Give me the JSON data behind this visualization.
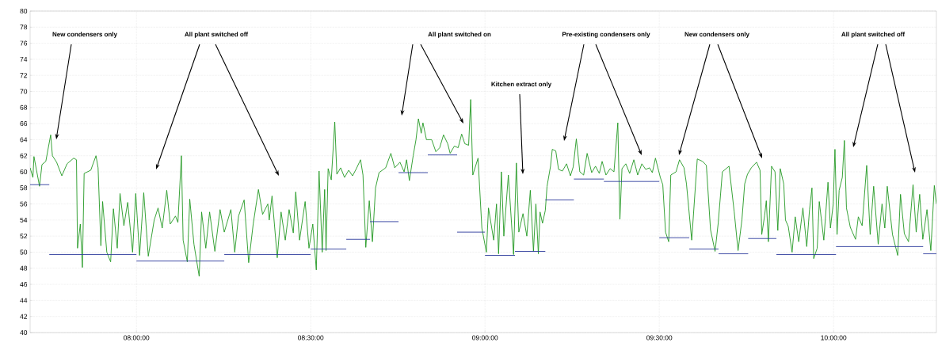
{
  "chart_data": {
    "type": "line",
    "series": [
      {
        "color": "#229922",
        "x": [
          7.695,
          7.703,
          7.706,
          7.722,
          7.729,
          7.74,
          7.754,
          7.759,
          7.771,
          7.786,
          7.801,
          7.82,
          7.828,
          7.831,
          7.839,
          7.845,
          7.85,
          7.869,
          7.884,
          7.89,
          7.898,
          7.903,
          7.915,
          7.926,
          7.934,
          7.945,
          7.953,
          7.964,
          7.975,
          7.989,
          7.998,
          8.009,
          8.021,
          8.034,
          8.051,
          8.062,
          8.074,
          8.087,
          8.097,
          8.112,
          8.119,
          8.129,
          8.134,
          8.146,
          8.153,
          8.165,
          8.18,
          8.187,
          8.199,
          8.21,
          8.225,
          8.24,
          8.252,
          8.271,
          8.282,
          8.293,
          8.309,
          8.322,
          8.335,
          8.35,
          8.362,
          8.377,
          8.381,
          8.389,
          8.404,
          8.415,
          8.427,
          8.438,
          8.45,
          8.457,
          8.468,
          8.484,
          8.495,
          8.506,
          8.516,
          8.524,
          8.533,
          8.54,
          8.544,
          8.55,
          8.559,
          8.569,
          8.575,
          8.586,
          8.597,
          8.609,
          8.62,
          8.631,
          8.643,
          8.65,
          8.658,
          8.668,
          8.677,
          8.686,
          8.696,
          8.715,
          8.73,
          8.741,
          8.756,
          8.768,
          8.775,
          8.783,
          8.794,
          8.802,
          8.809,
          8.817,
          8.822,
          8.832,
          8.847,
          8.859,
          8.87,
          8.881,
          8.893,
          8.9,
          8.912,
          8.923,
          8.933,
          8.942,
          8.953,
          8.959,
          8.965,
          8.98,
          8.991,
          9.004,
          9.01,
          9.025,
          9.033,
          9.039,
          9.047,
          9.054,
          9.067,
          9.082,
          9.09,
          9.097,
          9.109,
          9.12,
          9.13,
          9.139,
          9.146,
          9.153,
          9.158,
          9.165,
          9.173,
          9.178,
          9.188,
          9.193,
          9.203,
          9.211,
          9.222,
          9.234,
          9.245,
          9.253,
          9.262,
          9.272,
          9.283,
          9.293,
          9.306,
          9.317,
          9.328,
          9.336,
          9.347,
          9.359,
          9.37,
          9.381,
          9.387,
          9.393,
          9.404,
          9.415,
          9.427,
          9.438,
          9.45,
          9.461,
          9.472,
          9.48,
          9.489,
          9.503,
          9.51,
          9.518,
          9.527,
          9.533,
          9.548,
          9.558,
          9.571,
          9.578,
          9.593,
          9.609,
          9.624,
          9.635,
          9.647,
          9.66,
          9.669,
          9.681,
          9.7,
          9.715,
          9.726,
          9.737,
          9.745,
          9.753,
          9.764,
          9.779,
          9.789,
          9.794,
          9.802,
          9.807,
          9.813,
          9.822,
          9.832,
          9.84,
          9.847,
          9.857,
          9.862,
          9.87,
          9.881,
          9.89,
          9.9,
          9.912,
          9.923,
          9.931,
          9.938,
          9.943,
          9.953,
          9.959,
          9.972,
          9.984,
          9.991,
          9.999,
          10.004,
          10.01,
          10.016,
          10.025,
          10.031,
          10.037,
          10.048,
          10.063,
          10.071,
          10.082,
          10.095,
          10.105,
          10.115,
          10.128,
          10.139,
          10.147,
          10.154,
          10.169,
          10.184,
          10.192,
          10.203,
          10.215,
          10.228,
          10.237,
          10.247,
          10.256,
          10.268,
          10.279,
          10.289,
          10.295
        ],
        "values": [
          60.5,
          59.3,
          61.9,
          58.2,
          60.9,
          61.3,
          64.6,
          62,
          61.2,
          59.5,
          61,
          61.7,
          61.5,
          50.5,
          53.5,
          48.1,
          59.8,
          60.2,
          62,
          60.5,
          50.8,
          56.3,
          50,
          48.8,
          55.4,
          50.5,
          57.3,
          53.3,
          56.2,
          50,
          57.3,
          49.6,
          57.4,
          49.5,
          54,
          55.5,
          53,
          57.7,
          53.5,
          54.5,
          53.7,
          62,
          51.5,
          48.8,
          56.6,
          51,
          47,
          55,
          50.5,
          55,
          50.1,
          55.3,
          52.5,
          55.3,
          50,
          54.5,
          56.5,
          48.7,
          53.5,
          57.8,
          54.7,
          56,
          54,
          57,
          49.3,
          55,
          51.5,
          55.3,
          52.4,
          57.5,
          51.5,
          56.3,
          50.5,
          53.5,
          47.8,
          60.1,
          50,
          57.8,
          50.2,
          60.4,
          59,
          66.2,
          59.7,
          60.5,
          59.3,
          60.2,
          59.5,
          60.4,
          61.5,
          59.6,
          50.6,
          56.4,
          51.3,
          58,
          59.9,
          60.5,
          62.3,
          60.5,
          61.2,
          60,
          61.5,
          58.9,
          62,
          64,
          66.6,
          64.8,
          66.1,
          64,
          64,
          62.5,
          63,
          64.6,
          63.5,
          62.3,
          63.2,
          63,
          64.7,
          63.5,
          63.3,
          69,
          59.6,
          61.7,
          53,
          50,
          55.5,
          51.5,
          56,
          49.8,
          60,
          52,
          59.6,
          49.7,
          61.1,
          52.5,
          54.8,
          52,
          57.7,
          50.1,
          56,
          49.8,
          55,
          53.6,
          55.2,
          58.2,
          60.7,
          62.8,
          62.6,
          60.3,
          60.1,
          61,
          59.5,
          60.6,
          64.1,
          60,
          59.6,
          62.3,
          59.9,
          60.7,
          59.8,
          61.3,
          59.6,
          60.4,
          60,
          66.1,
          54.1,
          60.4,
          61,
          59.8,
          61.5,
          59.6,
          61,
          60.3,
          60.5,
          59.9,
          61.7,
          59.3,
          58.4,
          52.5,
          51.3,
          59.6,
          60,
          61.5,
          60.5,
          58.5,
          51.5,
          61.6,
          61.3,
          60.8,
          52.8,
          50.1,
          53.6,
          60,
          60.7,
          55,
          50.2,
          54,
          58.5,
          59.7,
          60.5,
          61.2,
          60.2,
          52.2,
          54.5,
          56.4,
          51.3,
          60.7,
          60,
          52.7,
          60.4,
          58.5,
          54,
          53.2,
          50,
          54.4,
          51.3,
          55.5,
          50.7,
          55.3,
          58,
          49.2,
          50.5,
          56.3,
          51.5,
          58.7,
          53,
          56,
          62.8,
          52.2,
          57.7,
          59.3,
          63.9,
          55.5,
          53.1,
          51.6,
          54.4,
          53.3,
          60.8,
          52.2,
          58.2,
          51,
          56,
          53,
          58.2,
          52.2,
          49.6,
          57.2,
          52.3,
          51.3,
          58.4,
          52.5,
          57.2,
          51.6,
          55.3,
          50.2,
          58.3,
          56
        ]
      },
      {
        "type": "step",
        "color": "#2b3a9c",
        "x": [
          7.695,
          7.75,
          8.0,
          8.252,
          8.5,
          8.602,
          8.67,
          8.752,
          8.836,
          8.92,
          9.0,
          9.086,
          9.173,
          9.255,
          9.341,
          9.5,
          9.586,
          9.67,
          9.755,
          9.836,
          10.007,
          10.257,
          10.295
        ],
        "values": [
          58.4,
          49.7,
          48.9,
          49.7,
          50.4,
          51.6,
          53.8,
          59.9,
          62.1,
          52.5,
          49.6,
          50.1,
          56.5,
          59.1,
          58.8,
          51.8,
          50.4,
          49.8,
          51.7,
          49.7,
          50.7,
          49.8,
          49.8
        ]
      }
    ],
    "xlim": [
      7.695,
      10.295
    ],
    "xticks": [
      {
        "value": 8,
        "label": "08:00:00"
      },
      {
        "value": 8.5,
        "label": "08:30:00"
      },
      {
        "value": 9,
        "label": "09:00:00"
      },
      {
        "value": 9.5,
        "label": "09:30:00"
      },
      {
        "value": 10,
        "label": "10:00:00"
      }
    ],
    "ylim": [
      40,
      80
    ],
    "yticks": [
      40,
      42,
      44,
      46,
      48,
      50,
      52,
      54,
      56,
      58,
      60,
      62,
      64,
      66,
      68,
      70,
      72,
      74,
      76,
      78,
      80
    ],
    "grid": true,
    "annotations": [
      "New condensers only",
      "All plant switched off",
      "All plant switched on",
      "Kitchen extract only",
      "Pre-existing condensers only",
      "New condensers only",
      "All plant switched off"
    ]
  }
}
